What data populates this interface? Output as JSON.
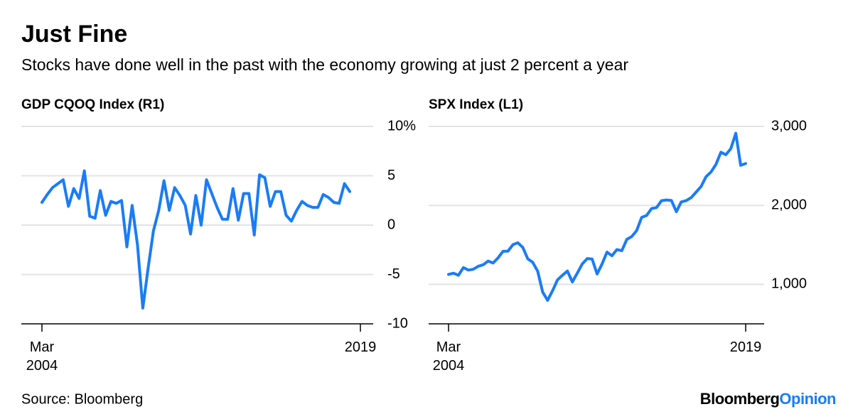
{
  "title": "Just Fine",
  "subtitle": "Stocks have done well in the past with the economy growing at just 2 percent a year",
  "source": "Source: Bloomberg",
  "brand": {
    "name": "Bloomberg",
    "suffix": "Opinion"
  },
  "chart_data": [
    {
      "type": "line",
      "title": "GDP CQOQ Index (R1)",
      "color": "#1a7cf7",
      "categories": [
        "Mar 2004",
        null,
        null,
        null,
        null,
        null,
        null,
        null,
        null,
        null,
        null,
        null,
        null,
        null,
        null,
        null,
        null,
        null,
        null,
        null,
        null,
        null,
        null,
        null,
        null,
        null,
        null,
        null,
        null,
        null,
        null,
        null,
        null,
        null,
        null,
        null,
        null,
        null,
        null,
        null,
        null,
        null,
        null,
        null,
        null,
        null,
        null,
        null,
        null,
        null,
        null,
        null,
        null,
        null,
        null,
        null,
        null,
        null,
        null,
        null,
        "2019"
      ],
      "values": [
        2.3,
        3.1,
        3.8,
        4.2,
        4.6,
        1.9,
        3.7,
        2.7,
        5.5,
        0.9,
        0.7,
        3.5,
        1.0,
        2.4,
        2.2,
        2.5,
        -2.2,
        2.0,
        -2.0,
        -8.4,
        -4.4,
        -0.6,
        1.5,
        4.5,
        1.5,
        3.8,
        3.0,
        2.0,
        -0.9,
        3.0,
        0.0,
        4.6,
        3.2,
        1.8,
        0.6,
        0.6,
        3.7,
        0.5,
        3.2,
        3.2,
        -1.0,
        5.1,
        4.8,
        1.9,
        3.4,
        3.4,
        1.0,
        0.4,
        1.5,
        2.4,
        2.0,
        1.8,
        1.8,
        3.1,
        2.8,
        2.3,
        2.2,
        4.2,
        3.4,
        null,
        null
      ],
      "ylim": [
        -10,
        10
      ],
      "yticks": [
        -10,
        -5,
        0,
        5,
        {
          "value": 10,
          "label": "10%"
        }
      ],
      "grid": true
    },
    {
      "type": "line",
      "title": "SPX Index (L1)",
      "color": "#1a7cf7",
      "categories": [
        "Mar 2004",
        null,
        null,
        null,
        null,
        null,
        null,
        null,
        null,
        null,
        null,
        null,
        null,
        null,
        null,
        null,
        null,
        null,
        null,
        null,
        null,
        null,
        null,
        null,
        null,
        null,
        null,
        null,
        null,
        null,
        null,
        null,
        null,
        null,
        null,
        null,
        null,
        null,
        null,
        null,
        null,
        null,
        null,
        null,
        null,
        null,
        null,
        null,
        null,
        null,
        null,
        null,
        null,
        null,
        null,
        null,
        null,
        null,
        null,
        null,
        "2019"
      ],
      "values": [
        1126,
        1141,
        1115,
        1212,
        1181,
        1191,
        1229,
        1248,
        1295,
        1270,
        1336,
        1418,
        1421,
        1503,
        1527,
        1468,
        1323,
        1280,
        1166,
        903,
        798,
        919,
        1057,
        1115,
        1169,
        1031,
        1141,
        1258,
        1326,
        1321,
        1131,
        1258,
        1408,
        1362,
        1441,
        1426,
        1569,
        1606,
        1682,
        1848,
        1872,
        1960,
        1972,
        2059,
        2068,
        2063,
        1920,
        2044,
        2060,
        2099,
        2168,
        2239,
        2363,
        2423,
        2519,
        2674,
        2641,
        2718,
        2914,
        2507,
        2530
      ],
      "ylim": [
        500,
        3000
      ],
      "yticks": [
        {
          "value": 1000,
          "label": "1,000"
        },
        {
          "value": 2000,
          "label": "2,000"
        },
        {
          "value": 3000,
          "label": "3,000"
        }
      ],
      "grid": true
    }
  ]
}
